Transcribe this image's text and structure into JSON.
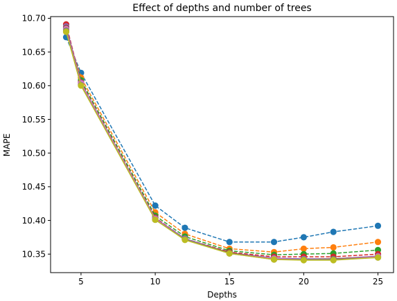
{
  "chart_data": {
    "type": "line",
    "title": "Effect of depths and number of trees",
    "xlabel": "Depths",
    "ylabel": "MAPE",
    "xlim": [
      2.95,
      26.05
    ],
    "ylim": [
      10.3225,
      10.7025
    ],
    "xticks": [
      5,
      10,
      15,
      20,
      25
    ],
    "yticks": [
      10.35,
      10.4,
      10.45,
      10.5,
      10.55,
      10.6,
      10.65,
      10.7
    ],
    "ytick_labels": [
      "10.35",
      "10.40",
      "10.45",
      "10.50",
      "10.55",
      "10.60",
      "10.65",
      "10.70"
    ],
    "xtick_labels": [
      "5",
      "10",
      "15",
      "20",
      "25"
    ],
    "grid": false,
    "x": [
      4,
      5,
      10,
      12,
      15,
      18,
      20,
      22,
      25
    ],
    "series": [
      {
        "color": "#1f77b4",
        "style": "dashed",
        "values": [
          10.672,
          10.619,
          10.422,
          10.389,
          10.368,
          10.368,
          10.375,
          10.383,
          10.392
        ]
      },
      {
        "color": "#ff7f0e",
        "style": "dashed",
        "values": [
          10.68,
          10.612,
          10.412,
          10.38,
          10.358,
          10.353,
          10.358,
          10.36,
          10.368
        ]
      },
      {
        "color": "#2ca02c",
        "style": "dashed",
        "values": [
          10.684,
          10.608,
          10.407,
          10.376,
          10.355,
          10.349,
          10.35,
          10.351,
          10.356
        ]
      },
      {
        "color": "#d62728",
        "style": "dashed",
        "values": [
          10.691,
          10.605,
          10.404,
          10.373,
          10.353,
          10.346,
          10.346,
          10.346,
          10.35
        ]
      },
      {
        "color": "#9467bd",
        "style": "solid",
        "values": [
          10.688,
          10.604,
          10.403,
          10.373,
          10.352,
          10.344,
          10.343,
          10.343,
          10.347
        ]
      },
      {
        "color": "#8c564b",
        "style": "solid",
        "values": [
          10.686,
          10.602,
          10.402,
          10.372,
          10.352,
          10.343,
          10.342,
          10.343,
          10.346
        ]
      },
      {
        "color": "#e377c2",
        "style": "solid",
        "values": [
          10.684,
          10.603,
          10.402,
          10.372,
          10.351,
          10.343,
          10.342,
          10.342,
          10.346
        ]
      },
      {
        "color": "#7f7f7f",
        "style": "solid",
        "values": [
          10.682,
          10.601,
          10.401,
          10.372,
          10.351,
          10.342,
          10.342,
          10.342,
          10.345
        ]
      },
      {
        "color": "#bcbd22",
        "style": "solid",
        "values": [
          10.68,
          10.6,
          10.401,
          10.371,
          10.351,
          10.342,
          10.341,
          10.341,
          10.345
        ]
      }
    ]
  }
}
